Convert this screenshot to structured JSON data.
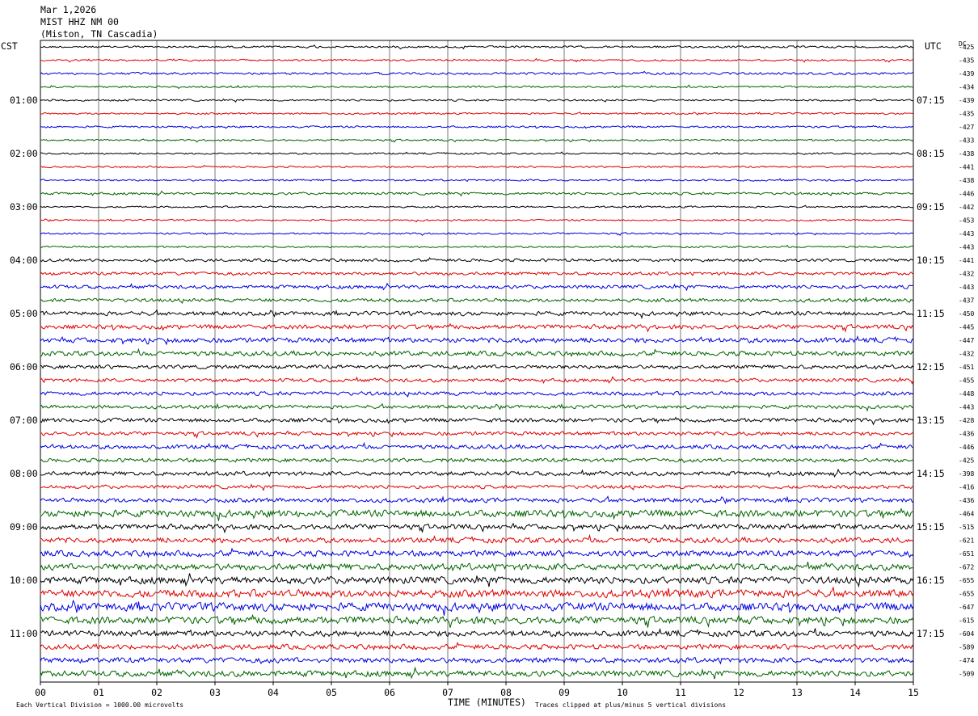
{
  "header": {
    "date": "Mar 1,2026",
    "station": "MIST HHZ NM 00",
    "location": "(Miston, TN Cascadia)"
  },
  "left_timezone": "CST",
  "right_timezone": "UTC",
  "dc_label": "DC",
  "chart_data": {
    "type": "line",
    "xlabel": "TIME (MINUTES)",
    "xlim": [
      0,
      15
    ],
    "x_ticks": [
      "00",
      "01",
      "02",
      "03",
      "04",
      "05",
      "06",
      "07",
      "08",
      "09",
      "10",
      "11",
      "12",
      "13",
      "14",
      "15"
    ],
    "trace_colors": [
      "#000000",
      "#e00000",
      "#0000e0",
      "#006400"
    ],
    "row_count": 48,
    "left_hour_labels": [
      "01:00",
      "02:00",
      "03:00",
      "04:00",
      "05:00",
      "06:00",
      "07:00",
      "08:00",
      "09:00",
      "10:00",
      "11:00"
    ],
    "right_hour_labels": [
      "07:15",
      "08:15",
      "09:15",
      "10:15",
      "11:15",
      "12:15",
      "13:15",
      "14:15",
      "15:15",
      "16:15",
      "17:15"
    ],
    "dc_offsets": [
      -425,
      -435,
      -439,
      -434,
      -439,
      -435,
      -427,
      -433,
      -438,
      -441,
      -438,
      -446,
      -442,
      -453,
      -443,
      -443,
      -441,
      -432,
      -443,
      -437,
      -450,
      -445,
      -447,
      -432,
      -451,
      -455,
      -448,
      -443,
      -428,
      -436,
      -446,
      -425,
      -398,
      -416,
      -436,
      -464,
      -515,
      -621,
      -651,
      -672,
      -655,
      -655,
      -647,
      -615,
      -604,
      -589,
      -474,
      -509
    ],
    "relative_amplitude": [
      0.35,
      0.3,
      0.4,
      0.3,
      0.32,
      0.3,
      0.33,
      0.32,
      0.3,
      0.3,
      0.32,
      0.42,
      0.3,
      0.28,
      0.3,
      0.3,
      0.5,
      0.55,
      0.6,
      0.6,
      0.7,
      0.75,
      0.85,
      0.8,
      0.65,
      0.6,
      0.65,
      0.6,
      0.7,
      0.65,
      0.7,
      0.65,
      0.7,
      0.6,
      0.75,
      1.2,
      0.9,
      0.9,
      1.0,
      1.1,
      1.2,
      1.3,
      1.4,
      1.25,
      1.0,
      0.85,
      0.9,
      1.0
    ]
  },
  "footer": {
    "scale": "Each Vertical Division = 1000.00 microvolts",
    "clip": "Traces clipped at plus/minus 5 vertical divisions"
  }
}
